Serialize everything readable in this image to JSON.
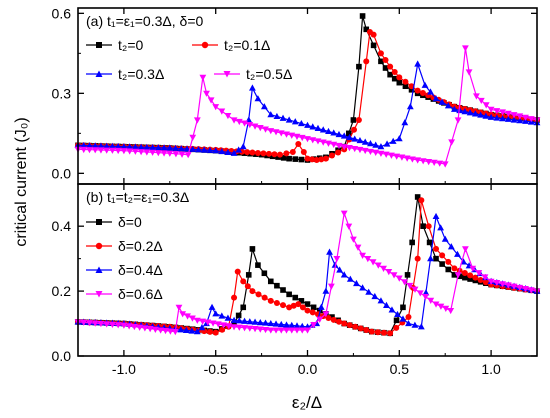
{
  "ylabel": "critical current (J₀)",
  "xlabel": "ε₂/Δ",
  "colors": {
    "black": "#000000",
    "red": "#ff0000",
    "blue": "#0000ff",
    "magenta": "#ff00ff"
  },
  "chart_data": [
    {
      "panel": "a",
      "type": "line",
      "annotation": "(a) t₁=ε₁=0.3Δ, δ=0",
      "xlim": [
        -1.25,
        1.25
      ],
      "ylim": [
        -0.04,
        0.62
      ],
      "yticks": [
        0.0,
        0.3,
        0.6
      ],
      "yticklabels": [
        "0.0",
        "0.3",
        "0.6"
      ],
      "legend": "top",
      "series": [
        {
          "name": "t₂=0",
          "color": "#000000",
          "marker": "square",
          "x": [
            -1.25,
            -1.0,
            -0.75,
            -0.5,
            -0.25,
            -0.1,
            0.0,
            0.1,
            0.2,
            0.25,
            0.28,
            0.3,
            0.32,
            0.36,
            0.4,
            0.45,
            0.5,
            0.6,
            0.8,
            1.0,
            1.25
          ],
          "y": [
            0.105,
            0.1,
            0.095,
            0.085,
            0.07,
            0.055,
            0.05,
            0.06,
            0.1,
            0.2,
            0.4,
            0.59,
            0.54,
            0.48,
            0.42,
            0.37,
            0.34,
            0.3,
            0.25,
            0.22,
            0.2
          ]
        },
        {
          "name": "t₂=0.1Δ",
          "color": "#ff0000",
          "marker": "circle",
          "x": [
            -1.25,
            -1.0,
            -0.75,
            -0.5,
            -0.3,
            -0.15,
            -0.08,
            -0.05,
            -0.02,
            0.0,
            0.05,
            0.1,
            0.2,
            0.28,
            0.32,
            0.34,
            0.36,
            0.4,
            0.45,
            0.5,
            0.6,
            0.8,
            1.0,
            1.25
          ],
          "y": [
            0.105,
            0.1,
            0.095,
            0.088,
            0.078,
            0.07,
            0.08,
            0.11,
            0.08,
            0.055,
            0.05,
            0.055,
            0.09,
            0.2,
            0.42,
            0.53,
            0.52,
            0.45,
            0.4,
            0.36,
            0.31,
            0.25,
            0.22,
            0.2
          ]
        },
        {
          "name": "t₂=0.3Δ",
          "color": "#0000ff",
          "marker": "triangle-up",
          "x": [
            -1.25,
            -1.0,
            -0.75,
            -0.5,
            -0.4,
            -0.35,
            -0.32,
            -0.3,
            -0.27,
            -0.2,
            -0.1,
            0.0,
            0.2,
            0.4,
            0.5,
            0.56,
            0.6,
            0.64,
            0.7,
            0.8,
            1.0,
            1.25
          ],
          "y": [
            0.105,
            0.1,
            0.095,
            0.085,
            0.075,
            0.1,
            0.2,
            0.32,
            0.28,
            0.22,
            0.2,
            0.18,
            0.14,
            0.1,
            0.13,
            0.25,
            0.41,
            0.33,
            0.28,
            0.24,
            0.21,
            0.19
          ]
        },
        {
          "name": "t₂=0.5Δ",
          "color": "#ff00ff",
          "marker": "triangle-down",
          "x": [
            -1.25,
            -1.0,
            -0.75,
            -0.65,
            -0.6,
            -0.57,
            -0.55,
            -0.5,
            -0.4,
            -0.2,
            0.0,
            0.2,
            0.4,
            0.6,
            0.75,
            0.82,
            0.86,
            0.88,
            0.92,
            1.0,
            1.25
          ],
          "y": [
            0.09,
            0.085,
            0.075,
            0.07,
            0.2,
            0.36,
            0.3,
            0.25,
            0.2,
            0.16,
            0.13,
            0.1,
            0.075,
            0.05,
            0.035,
            0.2,
            0.47,
            0.38,
            0.29,
            0.24,
            0.2
          ]
        }
      ]
    },
    {
      "panel": "b",
      "type": "line",
      "annotation": "(b) t₁=t₂=ε₁=0.3Δ",
      "xlim": [
        -1.25,
        1.25
      ],
      "ylim": [
        0.0,
        0.53
      ],
      "yticks": [
        0.0,
        0.2,
        0.4
      ],
      "yticklabels": [
        "0.0",
        "0.2",
        "0.4"
      ],
      "xticks": [
        -1.0,
        -0.5,
        0.0,
        0.5,
        1.0
      ],
      "xticklabels": [
        "-1.0",
        "-0.5",
        "0.0",
        "0.5",
        "1.0"
      ],
      "legend": "left",
      "series": [
        {
          "name": "δ=0",
          "color": "#000000",
          "marker": "square",
          "x": [
            -1.25,
            -1.0,
            -0.75,
            -0.5,
            -0.4,
            -0.35,
            -0.32,
            -0.3,
            -0.27,
            -0.2,
            -0.1,
            0.0,
            0.1,
            0.2,
            0.35,
            0.45,
            0.52,
            0.57,
            0.6,
            0.63,
            0.7,
            0.8,
            1.0,
            1.25
          ],
          "y": [
            0.105,
            0.1,
            0.09,
            0.075,
            0.1,
            0.15,
            0.25,
            0.33,
            0.28,
            0.23,
            0.19,
            0.16,
            0.13,
            0.1,
            0.075,
            0.07,
            0.15,
            0.35,
            0.49,
            0.4,
            0.3,
            0.25,
            0.22,
            0.2
          ]
        },
        {
          "name": "δ=0.2Δ",
          "color": "#ff0000",
          "marker": "circle",
          "x": [
            -1.25,
            -1.0,
            -0.75,
            -0.5,
            -0.43,
            -0.4,
            -0.38,
            -0.35,
            -0.3,
            -0.2,
            -0.1,
            -0.05,
            0.0,
            0.2,
            0.35,
            0.45,
            0.55,
            0.6,
            0.62,
            0.66,
            0.7,
            0.8,
            1.0,
            1.25
          ],
          "y": [
            0.105,
            0.1,
            0.09,
            0.072,
            0.09,
            0.18,
            0.26,
            0.23,
            0.2,
            0.17,
            0.15,
            0.16,
            0.14,
            0.1,
            0.075,
            0.07,
            0.12,
            0.3,
            0.48,
            0.4,
            0.33,
            0.27,
            0.22,
            0.2
          ]
        },
        {
          "name": "δ=0.4Δ",
          "color": "#0000ff",
          "marker": "triangle-up",
          "x": [
            -1.25,
            -1.0,
            -0.75,
            -0.6,
            -0.55,
            -0.52,
            -0.5,
            -0.4,
            -0.2,
            0.0,
            0.05,
            0.1,
            0.12,
            0.15,
            0.2,
            0.3,
            0.4,
            0.55,
            0.62,
            0.67,
            0.7,
            0.75,
            0.85,
            1.0,
            1.25
          ],
          "y": [
            0.105,
            0.1,
            0.085,
            0.075,
            0.1,
            0.15,
            0.13,
            0.11,
            0.1,
            0.09,
            0.1,
            0.2,
            0.32,
            0.28,
            0.25,
            0.21,
            0.17,
            0.1,
            0.09,
            0.3,
            0.43,
            0.36,
            0.29,
            0.23,
            0.2
          ]
        },
        {
          "name": "δ=0.6Δ",
          "color": "#ff00ff",
          "marker": "triangle-down",
          "x": [
            -1.25,
            -1.0,
            -0.8,
            -0.72,
            -0.7,
            -0.68,
            -0.6,
            -0.4,
            -0.2,
            0.0,
            0.1,
            0.16,
            0.2,
            0.25,
            0.3,
            0.5,
            0.7,
            0.78,
            0.82,
            0.86,
            0.9,
            1.0,
            1.25
          ],
          "y": [
            0.105,
            0.095,
            0.08,
            0.075,
            0.15,
            0.13,
            0.11,
            0.09,
            0.08,
            0.08,
            0.13,
            0.3,
            0.44,
            0.36,
            0.31,
            0.24,
            0.16,
            0.14,
            0.25,
            0.33,
            0.27,
            0.23,
            0.2
          ]
        }
      ]
    }
  ]
}
